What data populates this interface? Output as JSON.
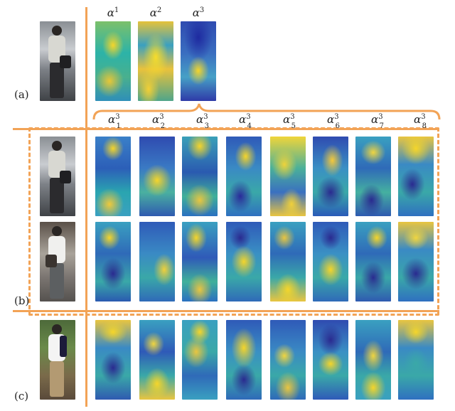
{
  "row_labels": {
    "a": "(a)",
    "b": "(b)",
    "c": "(c)"
  },
  "top_maps": [
    {
      "symbol": "α",
      "sup": "1"
    },
    {
      "symbol": "α",
      "sup": "2"
    },
    {
      "symbol": "α",
      "sup": "3"
    }
  ],
  "sub_maps": [
    {
      "symbol": "α",
      "sup": "3",
      "sub": "1"
    },
    {
      "symbol": "α",
      "sup": "3",
      "sub": "2"
    },
    {
      "symbol": "α",
      "sup": "3",
      "sub": "3"
    },
    {
      "symbol": "α",
      "sup": "3",
      "sub": "4"
    },
    {
      "symbol": "α",
      "sup": "3",
      "sub": "5"
    },
    {
      "symbol": "α",
      "sup": "3",
      "sub": "6"
    },
    {
      "symbol": "α",
      "sup": "3",
      "sub": "7"
    },
    {
      "symbol": "α",
      "sup": "3",
      "sub": "8"
    }
  ],
  "colors": {
    "accent": "#f2a356",
    "map_low": "#2f3aa8",
    "map_mid": "#2cb3a8",
    "map_high": "#f5d52a"
  }
}
